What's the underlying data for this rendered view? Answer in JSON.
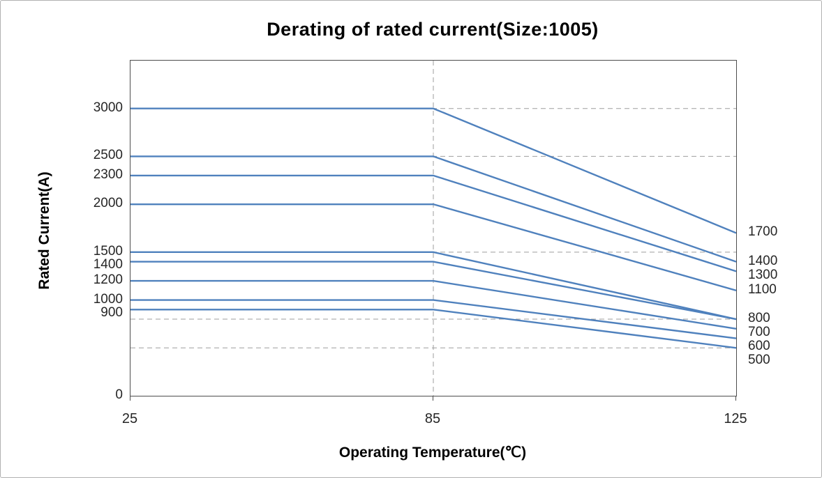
{
  "chart_data": {
    "type": "line",
    "title": "Derating of rated current(Size:1005)",
    "xlabel": "Operating Temperature(℃)",
    "ylabel": "Rated Current(A)",
    "x_ticks": [
      "25",
      "85",
      "125"
    ],
    "x_values": [
      25,
      85,
      125
    ],
    "ylim": [
      0,
      3500
    ],
    "y_axis_labels": [
      3000,
      2500,
      2300,
      2000,
      1500,
      1400,
      1200,
      1000,
      900,
      0
    ],
    "right_end_labels": [
      1700,
      1400,
      1300,
      1100,
      800,
      700,
      600,
      500
    ],
    "gridline_values": [
      3000,
      2500,
      1500,
      800,
      500
    ],
    "vertical_gridline_x": 85,
    "grid_on": true,
    "legend_position": "none",
    "series": [
      {
        "name": "3000A",
        "values": [
          3000,
          3000,
          1700
        ]
      },
      {
        "name": "2500A",
        "values": [
          2500,
          2500,
          1400
        ]
      },
      {
        "name": "2300A",
        "values": [
          2300,
          2300,
          1300
        ]
      },
      {
        "name": "2000A",
        "values": [
          2000,
          2000,
          1100
        ]
      },
      {
        "name": "1500A",
        "values": [
          1500,
          1500,
          800
        ]
      },
      {
        "name": "1400A",
        "values": [
          1400,
          1400,
          800
        ]
      },
      {
        "name": "1200A",
        "values": [
          1200,
          1200,
          700
        ]
      },
      {
        "name": "1000A",
        "values": [
          1000,
          1000,
          600
        ]
      },
      {
        "name": "900A",
        "values": [
          900,
          900,
          500
        ]
      }
    ],
    "colors": {
      "line": "#4f81bd",
      "grid": "#9e9e9e",
      "plot_border": "#4d4d4d",
      "text": "#262626"
    }
  }
}
